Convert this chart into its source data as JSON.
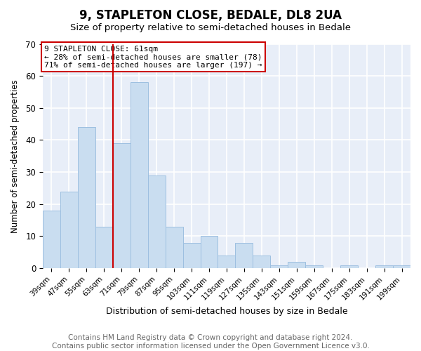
{
  "title": "9, STAPLETON CLOSE, BEDALE, DL8 2UA",
  "subtitle": "Size of property relative to semi-detached houses in Bedale",
  "xlabel": "Distribution of semi-detached houses by size in Bedale",
  "ylabel": "Number of semi-detached properties",
  "categories": [
    "39sqm",
    "47sqm",
    "55sqm",
    "63sqm",
    "71sqm",
    "79sqm",
    "87sqm",
    "95sqm",
    "103sqm",
    "111sqm",
    "119sqm",
    "127sqm",
    "135sqm",
    "143sqm",
    "151sqm",
    "159sqm",
    "167sqm",
    "175sqm",
    "183sqm",
    "191sqm",
    "199sqm"
  ],
  "values": [
    18,
    24,
    44,
    13,
    39,
    58,
    29,
    13,
    8,
    10,
    4,
    8,
    4,
    1,
    2,
    1,
    0,
    1,
    0,
    1,
    1
  ],
  "bar_color": "#c9ddf0",
  "bar_edge_color": "#9dbfe0",
  "vline_color": "#cc0000",
  "annotation_text": "9 STAPLETON CLOSE: 61sqm\n← 28% of semi-detached houses are smaller (78)\n71% of semi-detached houses are larger (197) →",
  "annotation_box_color": "#ffffff",
  "annotation_box_edge_color": "#cc0000",
  "ylim": [
    0,
    70
  ],
  "yticks": [
    0,
    10,
    20,
    30,
    40,
    50,
    60,
    70
  ],
  "footer_text": "Contains HM Land Registry data © Crown copyright and database right 2024.\nContains public sector information licensed under the Open Government Licence v3.0.",
  "bg_color": "#ffffff",
  "plot_bg_color": "#e8eef8",
  "grid_color": "#ffffff",
  "title_fontsize": 12,
  "subtitle_fontsize": 9.5,
  "footer_fontsize": 7.5
}
